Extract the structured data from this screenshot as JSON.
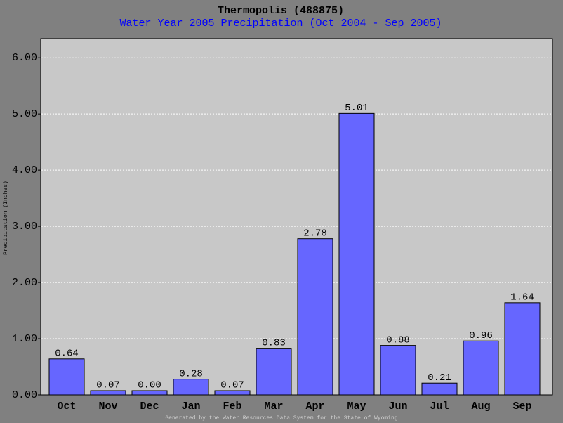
{
  "chart_data": {
    "type": "bar",
    "title": "Thermopolis (488875)",
    "subtitle": "Water Year 2005 Precipitation (Oct 2004 - Sep 2005)",
    "y_label": "Precipitation (Inches)",
    "footer": "Generated by the Water Resources Data System for the State of Wyoming",
    "categories": [
      "Oct",
      "Nov",
      "Dec",
      "Jan",
      "Feb",
      "Mar",
      "Apr",
      "May",
      "Jun",
      "Jul",
      "Aug",
      "Sep"
    ],
    "values": [
      0.64,
      0.07,
      0.0,
      0.28,
      0.07,
      0.83,
      2.78,
      5.01,
      0.88,
      0.21,
      0.96,
      1.64
    ],
    "value_labels": [
      "0.64",
      "0.07",
      "0.00",
      "0.28",
      "0.07",
      "0.83",
      "2.78",
      "5.01",
      "0.88",
      "0.21",
      "0.96",
      "1.64"
    ],
    "color": "#6666ff",
    "ylim": [
      0,
      6.34
    ],
    "yticks": [
      {
        "value": 0,
        "label": "0.00"
      },
      {
        "value": 1,
        "label": "1.00"
      },
      {
        "value": 2,
        "label": "2.00"
      },
      {
        "value": 3,
        "label": "3.00"
      },
      {
        "value": 4,
        "label": "4.00"
      },
      {
        "value": 5,
        "label": "5.00"
      },
      {
        "value": 6,
        "label": "6.00"
      }
    ],
    "grid": true
  }
}
